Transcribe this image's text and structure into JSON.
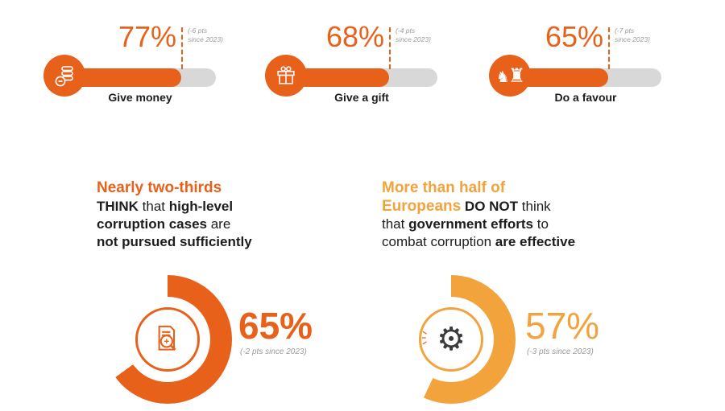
{
  "colors": {
    "orange": "#e8611b",
    "amber": "#f2a33c",
    "track_gray": "#d8d8d8",
    "dark": "#1d1d1b",
    "muted_gray": "#9b9b9b"
  },
  "chart_data": [
    {
      "type": "bar",
      "orientation": "horizontal",
      "categories": [
        "Give money",
        "Give a gift",
        "Do a favour"
      ],
      "values": [
        77,
        68,
        65
      ],
      "value_labels": [
        "77%",
        "68%",
        "65%"
      ],
      "changes": [
        "(-6 pts since 2023)",
        "(-4 pts since 2023)",
        "(-7 pts since 2023)"
      ],
      "unit": "%",
      "xlim": [
        0,
        100
      ],
      "bar_color": "#e8611b",
      "track_color": "#d8d8d8"
    },
    {
      "type": "pie",
      "title": "Nearly two-thirds THINK that high-level corruption cases are not pursued sufficiently",
      "values": [
        65,
        35
      ],
      "labels": [
        "65%",
        ""
      ],
      "value_label": "65%",
      "change": "(-2 pts since 2023)",
      "color": "#e8611b"
    },
    {
      "type": "pie",
      "title": "More than half of Europeans DO NOT think that government efforts to combat corruption are effective",
      "values": [
        57,
        43
      ],
      "labels": [
        "57%",
        ""
      ],
      "value_label": "57%",
      "change": "(-3 pts since 2023)",
      "color": "#f2a33c"
    }
  ],
  "bars": {
    "items": [
      {
        "pct": "77%",
        "change_l1": "(-6 pts",
        "change_l2": "since 2023)",
        "label": "Give money"
      },
      {
        "pct": "68%",
        "change_l1": "(-4 pts",
        "change_l2": "since 2023)",
        "label": "Give a gift"
      },
      {
        "pct": "65%",
        "change_l1": "(-7 pts",
        "change_l2": "since 2023)",
        "label": "Do a favour"
      }
    ]
  },
  "donut_sections": {
    "left": {
      "heading": "Nearly two-thirds",
      "l2a": "THINK",
      "l2b": " that ",
      "l2c": "high-level",
      "l3a": "corruption cases",
      "l3b": " are",
      "l4": "not pursued sufficiently",
      "pct": "65%",
      "change": "(-2 pts since 2023)"
    },
    "right": {
      "heading": "More than half of",
      "l2a": "Europeans",
      "l2b": " DO NOT",
      "l2c": " think",
      "l3a": "that ",
      "l3b": "government efforts",
      "l3c": " to",
      "l4a": "combat corruption ",
      "l4b": "are effective",
      "pct": "57%",
      "change": "(-3 pts since 2023)"
    }
  },
  "icons": {
    "bar1": "money-coins-icon",
    "bar2": "gift-icon",
    "bar3": "chess-pieces-icon",
    "donut1": "magnifier-document-icon",
    "donut2": "gear-icon"
  }
}
